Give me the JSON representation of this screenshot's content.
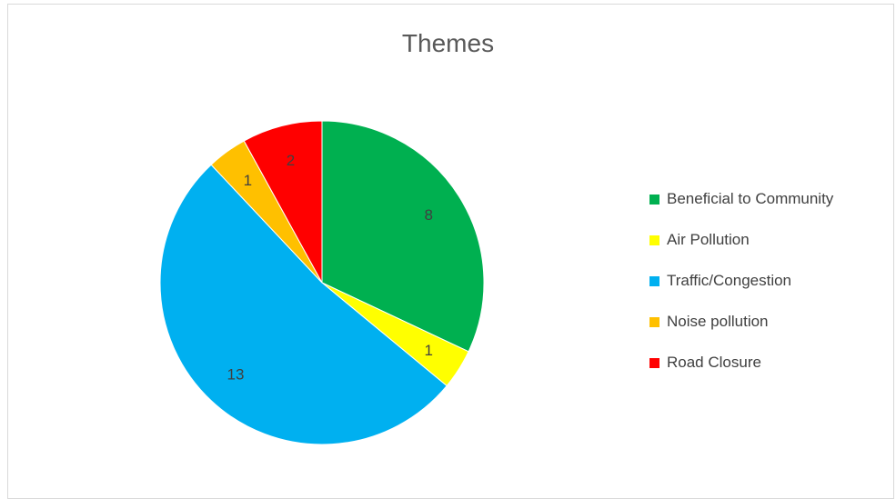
{
  "chart_data": {
    "type": "pie",
    "title": "Themes",
    "legend_position": "right",
    "slices": [
      {
        "label": "Beneficial to Community",
        "value": 8,
        "color": "#00b050"
      },
      {
        "label": "Air Pollution",
        "value": 1,
        "color": "#ffff00"
      },
      {
        "label": "Traffic/Congestion",
        "value": 13,
        "color": "#00b0f0"
      },
      {
        "label": "Noise pollution",
        "value": 1,
        "color": "#ffc000"
      },
      {
        "label": "Road Closure",
        "value": 2,
        "color": "#ff0000"
      }
    ]
  }
}
